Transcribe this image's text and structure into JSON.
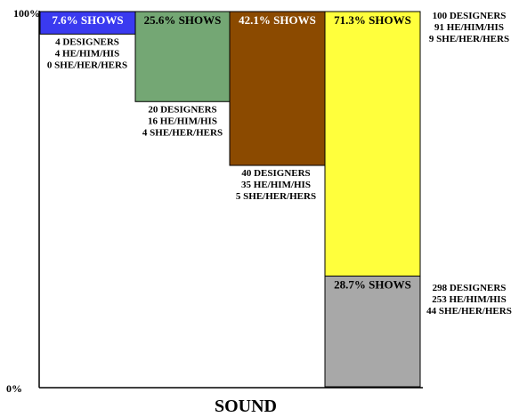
{
  "chart_data": {
    "type": "bar",
    "xlabel": "SOUND",
    "ylim": [
      0,
      100
    ],
    "y_tick_labels": [
      "100%",
      "0%"
    ],
    "grid": false,
    "colors": {
      "axis": "#000000",
      "b0": "#3a3af0",
      "b1": "#74a774",
      "b2": "#8b4a00",
      "b3": "#ffff3c",
      "b4": "#a8a8a8"
    },
    "bars": [
      {
        "id": "b0",
        "label": "7.6% SHOWS",
        "y_top": 100,
        "y_bottom": 94,
        "lines": [
          "4 DESIGNERS",
          "4 HE/HIM/HIS",
          "0 SHE/HER/HERS"
        ]
      },
      {
        "id": "b1",
        "label": "25.6% SHOWS",
        "y_top": 100,
        "y_bottom": 76,
        "lines": [
          "20 DESIGNERS",
          "16 HE/HIM/HIS",
          "4 SHE/HER/HERS"
        ]
      },
      {
        "id": "b2",
        "label": "42.1% SHOWS",
        "y_top": 100,
        "y_bottom": 59,
        "lines": [
          "40 DESIGNERS",
          "35 HE/HIM/HIS",
          "5 SHE/HER/HERS"
        ]
      },
      {
        "id": "b3",
        "label": "71.3% SHOWS",
        "y_top": 100,
        "y_bottom": 29.5,
        "lines": [
          "100 DESIGNERS",
          "91 HE/HIM/HIS",
          "9 SHE/HER/HERS"
        ]
      },
      {
        "id": "b4",
        "label": "28.7% SHOWS",
        "y_top": 29.5,
        "y_bottom": 0,
        "lines": [
          "298 DESIGNERS",
          "253 HE/HIM/HIS",
          "44 SHE/HER/HERS"
        ]
      }
    ]
  }
}
